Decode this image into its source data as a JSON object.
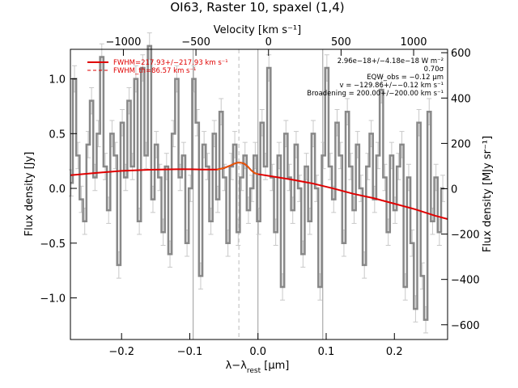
{
  "chart_data": {
    "type": "line",
    "title": "OI63, Raster 10, spaxel (1,4)",
    "xlabel_main": "λ−λ",
    "xlabel_sub": "rest",
    "xlabel_unit": " [μm]",
    "ylabel_left": "Flux density [Jy]",
    "ylabel_right": "Flux density [MJy sr⁻¹]",
    "xlabel_top": "Velocity [km s⁻¹]",
    "xlim": [
      -0.275,
      0.278
    ],
    "ylim": [
      -1.38,
      1.27
    ],
    "y2lim": [
      -665,
      615
    ],
    "vlim": [
      -1365,
      1234
    ],
    "xticks": [
      -0.2,
      -0.1,
      0.0,
      0.1,
      0.2
    ],
    "xtick_labels": [
      "−0.2",
      "−0.1",
      "0.0",
      "0.1",
      "0.2"
    ],
    "yticks": [
      -1.0,
      -0.5,
      0.0,
      0.5,
      1.0
    ],
    "ytick_labels": [
      "−1.0",
      "−0.5",
      "0.0",
      "0.5",
      "1.0"
    ],
    "y2ticks": [
      -600,
      -400,
      -200,
      0,
      200,
      400,
      600
    ],
    "y2tick_labels": [
      "−600",
      "−400",
      "−200",
      "0",
      "200",
      "400",
      "600"
    ],
    "vticks": [
      -1000,
      -500,
      0,
      500,
      1000
    ],
    "vtick_labels": [
      "−1000",
      "−500",
      "0",
      "500",
      "1000"
    ],
    "vlines_solid": [
      -0.095,
      0.0,
      0.095
    ],
    "vline_dashed": -0.028,
    "legend": [
      {
        "label": "FWHM=217.93+/−217.93 km s⁻¹",
        "style": "solid"
      },
      {
        "label": "FWHM_th=86.57 km s⁻¹",
        "style": "dashed"
      }
    ],
    "annotations": [
      "2.96e−18+/−4.18e−18 W m⁻²",
      "0.70σ",
      "EQW_obs = −0.12 μm",
      "v = −129.86+/−−0.12 km s⁻¹",
      "Broadening = 200.00+/−200.00 km s⁻¹"
    ],
    "series": [
      {
        "style": "steps",
        "color": "#888888",
        "error": 0.12,
        "x": [
          -0.274,
          -0.269,
          -0.264,
          -0.259,
          -0.254,
          -0.249,
          -0.244,
          -0.239,
          -0.234,
          -0.229,
          -0.224,
          -0.219,
          -0.214,
          -0.209,
          -0.204,
          -0.199,
          -0.194,
          -0.189,
          -0.184,
          -0.179,
          -0.174,
          -0.169,
          -0.164,
          -0.159,
          -0.154,
          -0.149,
          -0.144,
          -0.139,
          -0.134,
          -0.129,
          -0.124,
          -0.119,
          -0.114,
          -0.109,
          -0.104,
          -0.099,
          -0.094,
          -0.089,
          -0.084,
          -0.079,
          -0.074,
          -0.069,
          -0.064,
          -0.059,
          -0.054,
          -0.049,
          -0.044,
          -0.039,
          -0.034,
          -0.029,
          -0.024,
          -0.019,
          -0.014,
          -0.009,
          -0.004,
          0.001,
          0.006,
          0.011,
          0.016,
          0.021,
          0.026,
          0.031,
          0.036,
          0.041,
          0.046,
          0.051,
          0.056,
          0.061,
          0.066,
          0.071,
          0.076,
          0.081,
          0.086,
          0.091,
          0.096,
          0.101,
          0.106,
          0.111,
          0.116,
          0.121,
          0.126,
          0.131,
          0.136,
          0.141,
          0.146,
          0.151,
          0.156,
          0.161,
          0.166,
          0.171,
          0.176,
          0.181,
          0.186,
          0.191,
          0.196,
          0.201,
          0.206,
          0.211,
          0.216,
          0.221,
          0.226,
          0.231,
          0.236,
          0.241,
          0.246,
          0.251,
          0.256,
          0.261,
          0.266,
          0.271
        ],
        "values": [
          0.05,
          1.0,
          0.3,
          -0.1,
          -0.3,
          0.4,
          0.8,
          0.1,
          0.5,
          1.2,
          0.2,
          -0.2,
          0.5,
          0.3,
          -0.7,
          0.6,
          0.1,
          0.8,
          0.2,
          1.0,
          -0.3,
          1.1,
          0.3,
          1.3,
          -0.1,
          0.4,
          0.1,
          -0.4,
          0.2,
          -0.6,
          0.5,
          1.0,
          0.1,
          0.3,
          -0.5,
          0.0,
          1.0,
          0.6,
          -0.8,
          0.4,
          0.2,
          -0.3,
          0.5,
          -0.1,
          0.7,
          0.1,
          -0.5,
          0.2,
          0.4,
          -0.4,
          0.1,
          0.3,
          -0.2,
          0.0,
          0.3,
          -0.3,
          0.6,
          0.2,
          1.1,
          0.1,
          -0.4,
          0.3,
          -0.9,
          0.5,
          0.1,
          -0.2,
          0.4,
          0.0,
          -0.6,
          0.2,
          -0.3,
          0.5,
          0.0,
          -0.9,
          0.3,
          1.1,
          0.2,
          -0.1,
          0.6,
          0.3,
          -0.5,
          0.7,
          0.2,
          -0.2,
          0.4,
          0.0,
          -0.7,
          0.2,
          0.5,
          -0.1,
          0.3,
          0.9,
          0.1,
          -0.4,
          0.3,
          -0.2,
          0.2,
          0.4,
          -0.9,
          0.1,
          -0.5,
          -1.1,
          0.6,
          -0.8,
          -1.2,
          0.7,
          -0.3,
          0.1,
          -0.4,
          0.0
        ]
      },
      {
        "style": "line",
        "color": "#e00000",
        "x": [
          -0.275,
          -0.24,
          -0.2,
          -0.16,
          -0.12,
          -0.1,
          -0.08,
          -0.06,
          -0.05,
          -0.04,
          -0.035,
          -0.03,
          -0.025,
          -0.02,
          -0.015,
          -0.01,
          -0.005,
          0.0,
          0.02,
          0.05,
          0.08,
          0.11,
          0.14,
          0.17,
          0.2,
          0.23,
          0.26,
          0.278
        ],
        "values": [
          0.12,
          0.14,
          0.16,
          0.17,
          0.175,
          0.175,
          0.172,
          0.172,
          0.185,
          0.21,
          0.225,
          0.235,
          0.235,
          0.225,
          0.2,
          0.165,
          0.14,
          0.13,
          0.11,
          0.08,
          0.045,
          0.0,
          -0.05,
          -0.09,
          -0.14,
          -0.19,
          -0.25,
          -0.28
        ]
      },
      {
        "style": "line",
        "color": "#e67300",
        "x": [
          -0.06,
          -0.05,
          -0.04,
          -0.035,
          -0.03,
          -0.025,
          -0.02,
          -0.015,
          -0.01,
          -0.005,
          0.0
        ],
        "values": [
          0.17,
          0.185,
          0.21,
          0.225,
          0.235,
          0.235,
          0.225,
          0.2,
          0.165,
          0.14,
          0.13
        ]
      }
    ]
  }
}
